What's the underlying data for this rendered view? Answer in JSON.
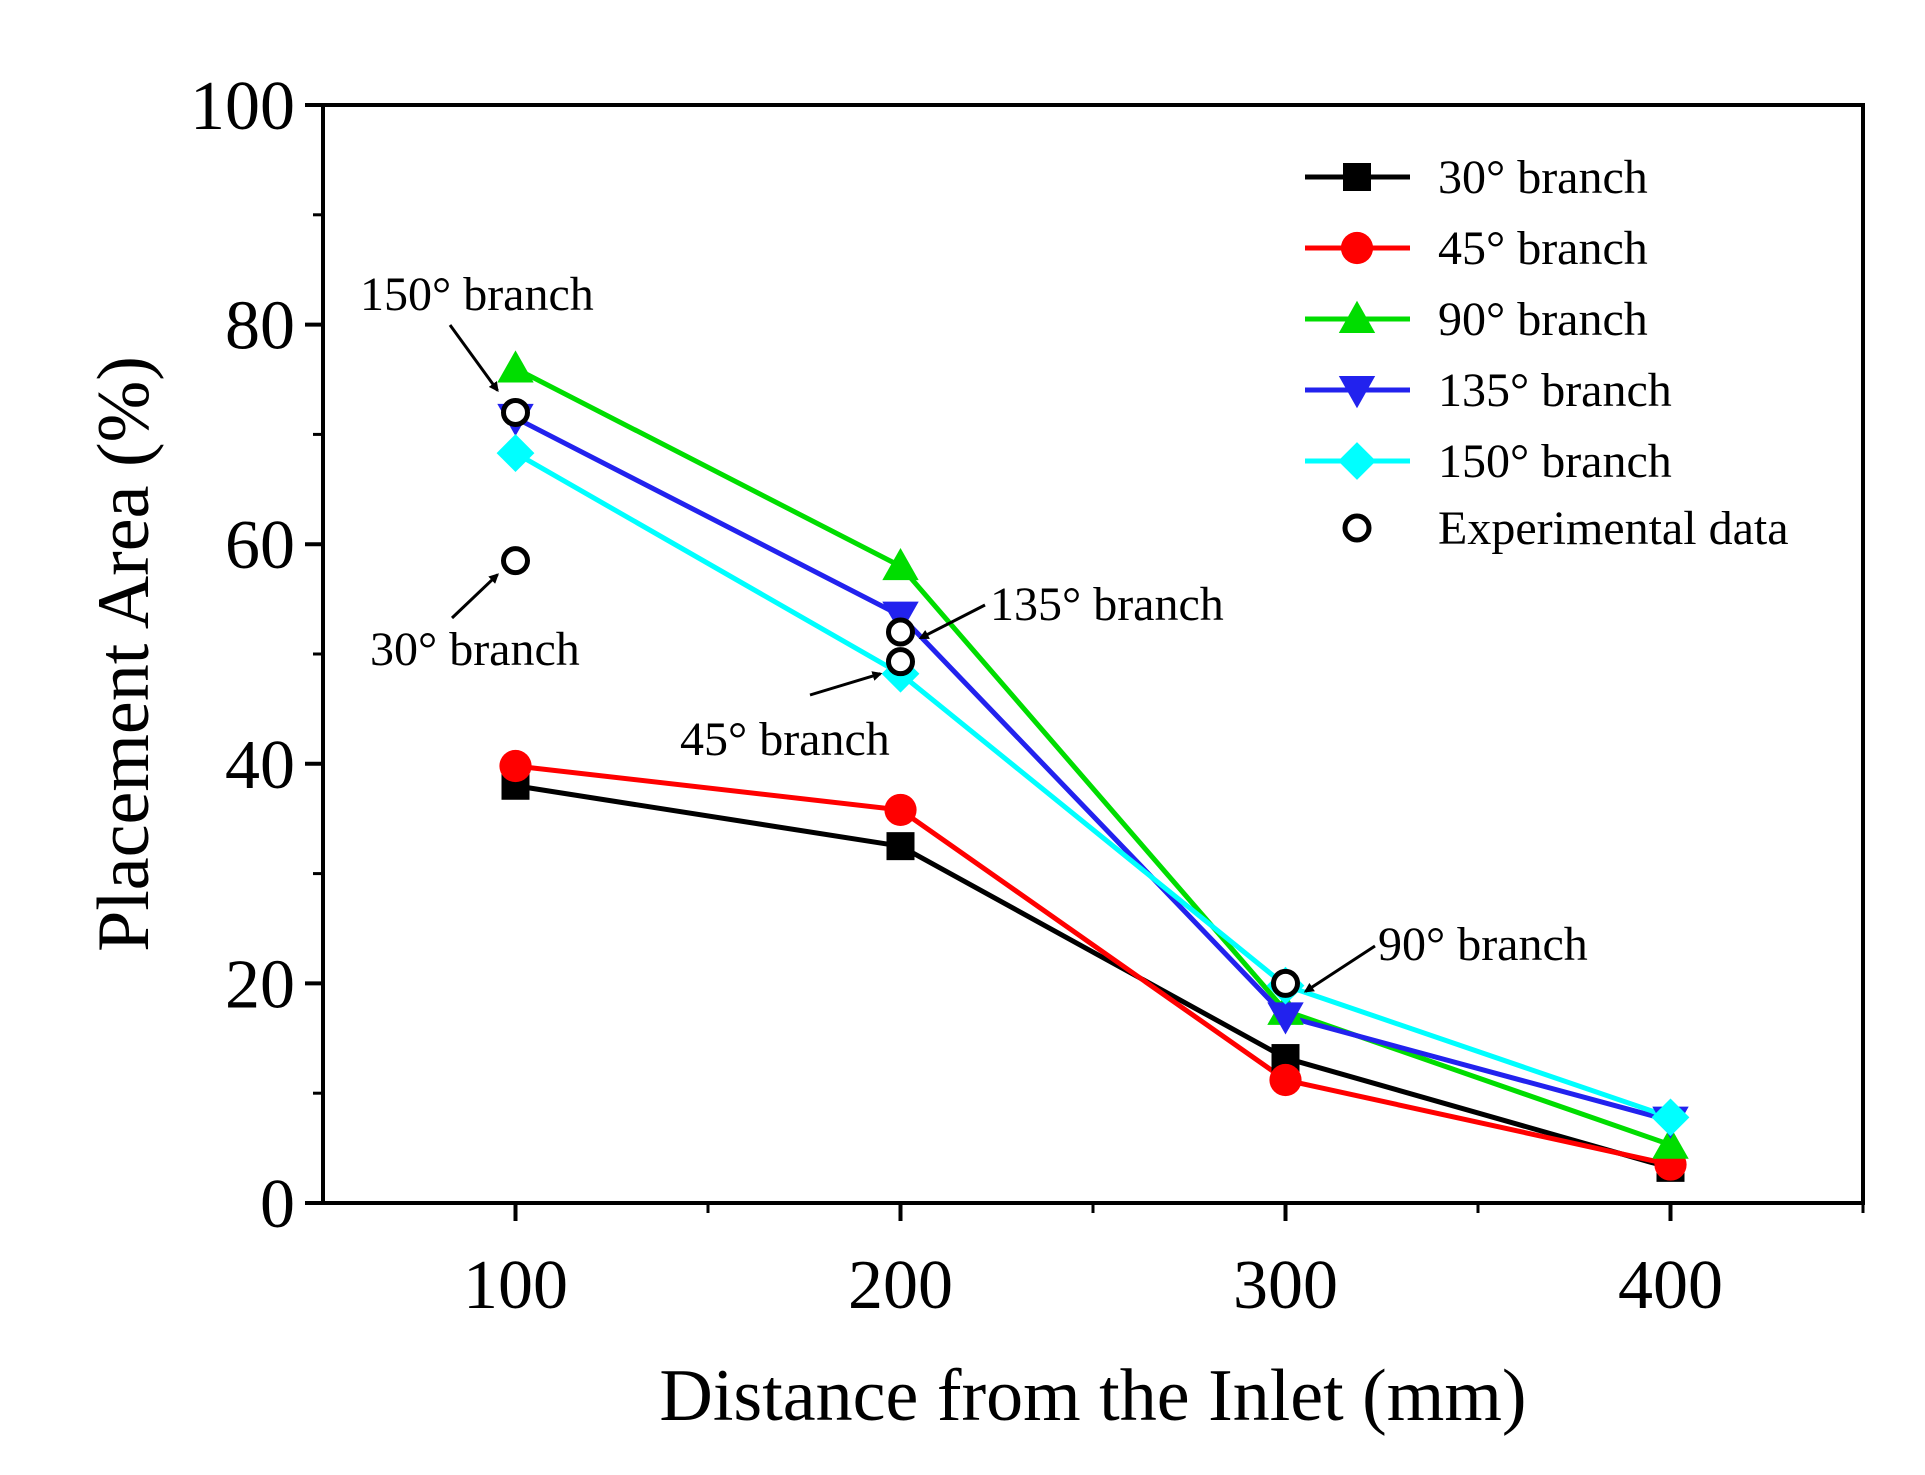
{
  "chart_data": {
    "type": "line",
    "title": "",
    "xlabel": "Distance from the Inlet (mm)",
    "ylabel": "Placement Area (%)",
    "xlim": [
      50,
      450
    ],
    "ylim": [
      0,
      100
    ],
    "x_ticks": [
      100,
      200,
      300,
      400
    ],
    "x_tick_labels": [
      "100",
      "200",
      "300",
      "400"
    ],
    "y_ticks": [
      0,
      20,
      40,
      60,
      80,
      100
    ],
    "y_tick_labels": [
      "0",
      "20",
      "40",
      "60",
      "80",
      "100"
    ],
    "grid": false,
    "legend_position": "top-right",
    "series": [
      {
        "name": "30° branch",
        "color": "#000000",
        "marker": "square",
        "x": [
          100,
          200,
          300,
          400
        ],
        "values": [
          38,
          32.5,
          13.2,
          3.2
        ]
      },
      {
        "name": "45° branch",
        "color": "#ff0000",
        "marker": "circle",
        "x": [
          100,
          200,
          300,
          400
        ],
        "values": [
          39.8,
          35.8,
          11.2,
          3.5
        ]
      },
      {
        "name": "90° branch",
        "color": "#00dd00",
        "marker": "triangle-up",
        "x": [
          100,
          200,
          300,
          400
        ],
        "values": [
          76,
          58,
          17.5,
          5.3
        ]
      },
      {
        "name": "135° branch",
        "color": "#2222ee",
        "marker": "triangle-down",
        "x": [
          100,
          200,
          300,
          400
        ],
        "values": [
          71.5,
          53.5,
          17,
          7.5
        ]
      },
      {
        "name": "150° branch",
        "color": "#00ffff",
        "marker": "diamond",
        "x": [
          100,
          200,
          300,
          400
        ],
        "values": [
          68.3,
          48.2,
          19.8,
          7.8
        ]
      }
    ],
    "experimental": {
      "name": "Experimental data",
      "marker": "open-circle",
      "points": [
        {
          "x": 100,
          "y": 72
        },
        {
          "x": 100,
          "y": 58.5
        },
        {
          "x": 200,
          "y": 52
        },
        {
          "x": 200,
          "y": 49.3
        },
        {
          "x": 300,
          "y": 20
        }
      ]
    },
    "annotations": [
      {
        "text": "150°  branch",
        "x": 100,
        "y": 72
      },
      {
        "text": "30°  branch",
        "x": 100,
        "y": 58.5
      },
      {
        "text": "135°  branch",
        "x": 200,
        "y": 52
      },
      {
        "text": "45°  branch",
        "x": 200,
        "y": 49.3
      },
      {
        "text": "90°  branch",
        "x": 300,
        "y": 20
      }
    ]
  }
}
